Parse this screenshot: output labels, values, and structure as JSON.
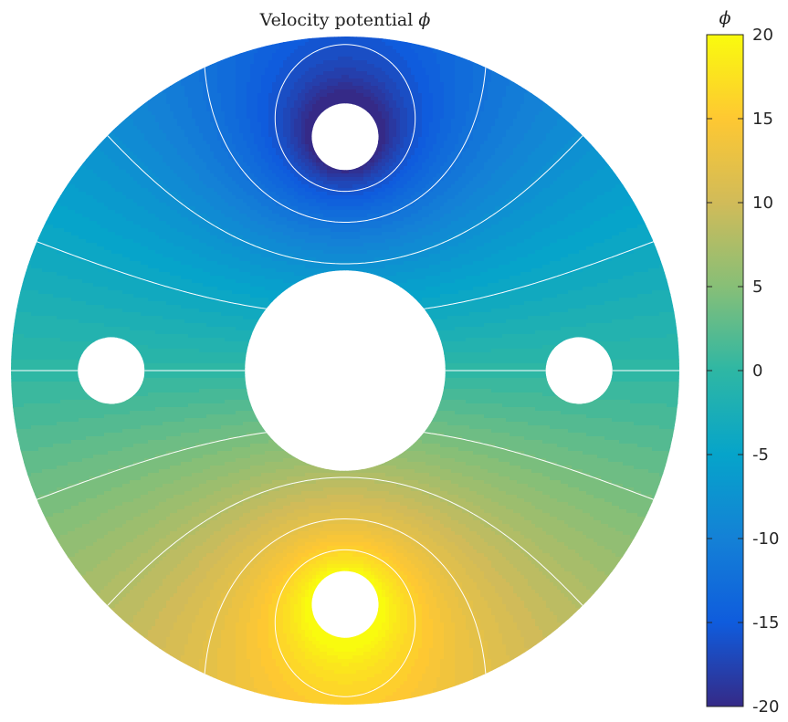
{
  "chart_data": {
    "type": "heatmap",
    "title": "Velocity potential ",
    "title_symbol": "ϕ",
    "colorbar": {
      "label": "ϕ",
      "range": [
        -20,
        20
      ],
      "ticks": [
        "20",
        "15",
        "10",
        "5",
        "0",
        "-5",
        "-10",
        "-15",
        "-20"
      ],
      "tick_values": [
        20,
        15,
        10,
        5,
        0,
        -5,
        -10,
        -15,
        -20
      ],
      "colormap": "parula",
      "colormap_stops": [
        "#352a87",
        "#0f5cdd",
        "#1481d6",
        "#06a4ca",
        "#2eb7a4",
        "#87bf77",
        "#d1bb59",
        "#fec832",
        "#f9fb0e"
      ]
    },
    "domain": {
      "shape": "annulus with four circular holes",
      "outer_radius": 1.0,
      "inner_radius": 0.3,
      "holes": [
        {
          "position": "top",
          "center": [
            0,
            0.7
          ],
          "radius": 0.1
        },
        {
          "position": "bottom",
          "center": [
            0,
            -0.7
          ],
          "radius": 0.1
        },
        {
          "position": "left",
          "center": [
            -0.7,
            0
          ],
          "radius": 0.1
        },
        {
          "position": "right",
          "center": [
            0.7,
            0
          ],
          "radius": 0.1
        }
      ]
    },
    "field": {
      "description": "phi increases from top (minimum about -20 near top hole) to bottom (maximum about 20 near bottom hole)",
      "min": -20,
      "max": 20
    },
    "contour_color": "#ffffff",
    "grid": false
  }
}
